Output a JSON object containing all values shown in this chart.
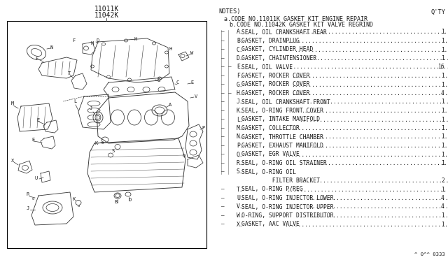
{
  "title1": "11011K",
  "title2": "11042K",
  "notes_header": "NOTES)",
  "qty_header": "Q'TY",
  "code_a": "a.CODE NO.11011K GASKET KIT ENGINE REPAIR",
  "code_b": "b.CODE NO.11042K GASKET KIT VALVE REGRIND",
  "parts": [
    {
      "code": "A",
      "desc": "SEAL, OIL CRANKSHAFT REAR",
      "qty": "1",
      "a": true,
      "b": false
    },
    {
      "code": "B",
      "desc": "GASKET, DRAINPLUG",
      "qty": "1",
      "a": true,
      "b": false
    },
    {
      "code": "C",
      "desc": "GASKET, CYLINDER HEAD",
      "qty": "1",
      "a": true,
      "b": false
    },
    {
      "code": "D",
      "desc": "GASKET, CHAINTENSIONER",
      "qty": "1",
      "a": true,
      "b": false
    },
    {
      "code": "E",
      "desc": "SEAL, OIL VALVE",
      "qty": "16",
      "a": true,
      "b": true
    },
    {
      "code": "F",
      "desc": "GASKET, ROCKER COVER",
      "qty": "1",
      "a": true,
      "b": false
    },
    {
      "code": "G",
      "desc": "GASKET, ROCKER COVER",
      "qty": "1",
      "a": true,
      "b": false
    },
    {
      "code": "H",
      "desc": "GASKET, ROCKER COVER",
      "qty": "4",
      "a": true,
      "b": true
    },
    {
      "code": "J",
      "desc": "SEAL, OIL CRANKSHAFT FRONT",
      "qty": "1",
      "a": true,
      "b": false
    },
    {
      "code": "K",
      "desc": "SEAL, O-RING FRONT COVER",
      "qty": "1",
      "a": true,
      "b": false
    },
    {
      "code": "L",
      "desc": "GASKET, INTAKE MANIFOLD",
      "qty": "1",
      "a": true,
      "b": false
    },
    {
      "code": "M",
      "desc": "GASKET, COLLECTOR",
      "qty": "1",
      "a": true,
      "b": false
    },
    {
      "code": "N",
      "desc": "GASKET, THROTTLE CHAMBER",
      "qty": "1",
      "a": true,
      "b": false
    },
    {
      "code": "P",
      "desc": "GASKET, EXHAUST MANIFOLD",
      "qty": "1",
      "a": true,
      "b": false
    },
    {
      "code": "Q",
      "desc": "GASKET, EGR VALVE",
      "qty": "1",
      "a": true,
      "b": false
    },
    {
      "code": "R",
      "desc": "SEAL, O-RING OIL STRAINER",
      "qty": "1",
      "a": true,
      "b": false
    },
    {
      "code": "S",
      "desc": "SEAL, O-RING OIL",
      "qty": "",
      "a": true,
      "b": false
    },
    {
      "code": "",
      "desc": "         FILTER BRACKET",
      "qty": "2",
      "a": false,
      "b": false
    },
    {
      "code": "T",
      "desc": "SEAL, O-RING P/REG",
      "qty": "1",
      "a": true,
      "b": false
    },
    {
      "code": "U",
      "desc": "SEAL, O-RING INJECTOR LOWER",
      "qty": "4",
      "a": true,
      "b": false
    },
    {
      "code": "V",
      "desc": "SEAL, O-RING INJECTOR UPPER",
      "qty": "4",
      "a": true,
      "b": false
    },
    {
      "code": "W",
      "desc": "O-RING, SUPPORT DISTRIBUTOR",
      "qty": "1",
      "a": true,
      "b": false
    },
    {
      "code": "X",
      "desc": "GASKET, AAC VALVE",
      "qty": "1",
      "a": true,
      "b": false
    }
  ],
  "footer": "^ 0^^ 0333",
  "bg_color": "#ffffff",
  "text_color": "#1a1a1a",
  "line_color": "#333333",
  "box_color": "#000000"
}
